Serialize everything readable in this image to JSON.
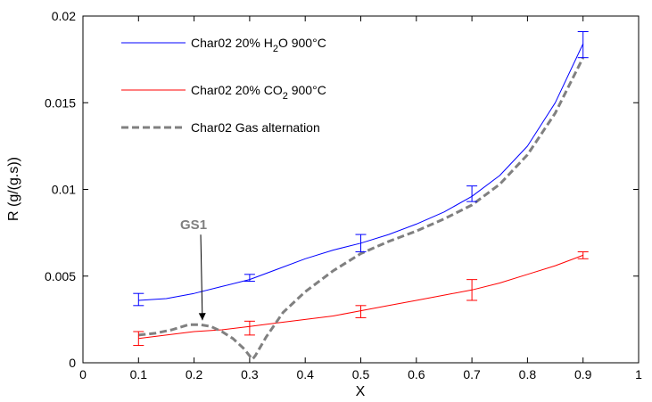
{
  "chart_data": {
    "type": "line",
    "xlabel": "X",
    "ylabel": "R (g/(g.s))",
    "xlim": [
      0,
      1
    ],
    "ylim": [
      0,
      0.02
    ],
    "x_ticks": [
      0,
      0.1,
      0.2,
      0.3,
      0.4,
      0.5,
      0.6,
      0.7,
      0.8,
      0.9,
      1
    ],
    "x_tick_labels": [
      "0",
      "0.1",
      "0.2",
      "0.3",
      "0.4",
      "0.5",
      "0.6",
      "0.7",
      "0.8",
      "0.9",
      "1"
    ],
    "y_ticks": [
      0,
      0.005,
      0.01,
      0.015,
      0.02
    ],
    "y_tick_labels": [
      "0",
      "0.005",
      "0.01",
      "0.015",
      "0.02"
    ],
    "legend_position": "top-left",
    "series": [
      {
        "legend_prefix": "Char02 20% H",
        "legend_sub": "2",
        "legend_suffix": "O 900°C",
        "color": "#0000ff",
        "style": "solid",
        "x": [
          0.1,
          0.15,
          0.2,
          0.25,
          0.3,
          0.35,
          0.4,
          0.45,
          0.5,
          0.55,
          0.6,
          0.65,
          0.7,
          0.75,
          0.8,
          0.85,
          0.9
        ],
        "y": [
          0.0036,
          0.0037,
          0.004,
          0.0044,
          0.0048,
          0.0054,
          0.006,
          0.0065,
          0.0069,
          0.0074,
          0.008,
          0.0087,
          0.0096,
          0.0108,
          0.0125,
          0.015,
          0.0184
        ],
        "error_bars": [
          {
            "x": 0.1,
            "low": 0.0033,
            "high": 0.004
          },
          {
            "x": 0.3,
            "low": 0.0047,
            "high": 0.0051
          },
          {
            "x": 0.5,
            "low": 0.0064,
            "high": 0.0074
          },
          {
            "x": 0.7,
            "low": 0.0093,
            "high": 0.0102
          },
          {
            "x": 0.9,
            "low": 0.0176,
            "high": 0.0191
          }
        ]
      },
      {
        "legend_prefix": "Char02 20% CO",
        "legend_sub": "2",
        "legend_suffix": " 900°C",
        "color": "#ff0000",
        "style": "solid",
        "x": [
          0.1,
          0.15,
          0.2,
          0.25,
          0.3,
          0.35,
          0.4,
          0.45,
          0.5,
          0.55,
          0.6,
          0.65,
          0.7,
          0.75,
          0.8,
          0.85,
          0.9
        ],
        "y": [
          0.0014,
          0.0016,
          0.0018,
          0.0019,
          0.0021,
          0.0023,
          0.0025,
          0.0027,
          0.003,
          0.0033,
          0.0036,
          0.0039,
          0.0042,
          0.0046,
          0.0051,
          0.0056,
          0.0062
        ],
        "error_bars": [
          {
            "x": 0.1,
            "low": 0.001,
            "high": 0.0018
          },
          {
            "x": 0.3,
            "low": 0.0016,
            "high": 0.0024
          },
          {
            "x": 0.5,
            "low": 0.0026,
            "high": 0.0033
          },
          {
            "x": 0.7,
            "low": 0.0036,
            "high": 0.0048
          },
          {
            "x": 0.9,
            "low": 0.006,
            "high": 0.0064
          }
        ]
      },
      {
        "legend_prefix": "Char02 Gas alternation",
        "legend_sub": "",
        "legend_suffix": "",
        "color": "#808080",
        "style": "dashed",
        "x": [
          0.1,
          0.13,
          0.16,
          0.19,
          0.21,
          0.23,
          0.25,
          0.27,
          0.29,
          0.305,
          0.31,
          0.33,
          0.36,
          0.4,
          0.45,
          0.5,
          0.55,
          0.6,
          0.65,
          0.7,
          0.75,
          0.8,
          0.85,
          0.9
        ],
        "y": [
          0.0016,
          0.0017,
          0.0019,
          0.0022,
          0.0022,
          0.0021,
          0.0018,
          0.0014,
          0.0008,
          0.0002,
          0.0004,
          0.0015,
          0.0029,
          0.0041,
          0.0053,
          0.0063,
          0.007,
          0.0076,
          0.0083,
          0.0091,
          0.0103,
          0.012,
          0.0144,
          0.0176
        ]
      }
    ],
    "annotations": [
      {
        "text": "GS1",
        "text_x": 0.175,
        "text_y": 0.0077,
        "arrow_to_x": 0.215,
        "arrow_to_y": 0.0023,
        "color": "#808080"
      }
    ]
  }
}
